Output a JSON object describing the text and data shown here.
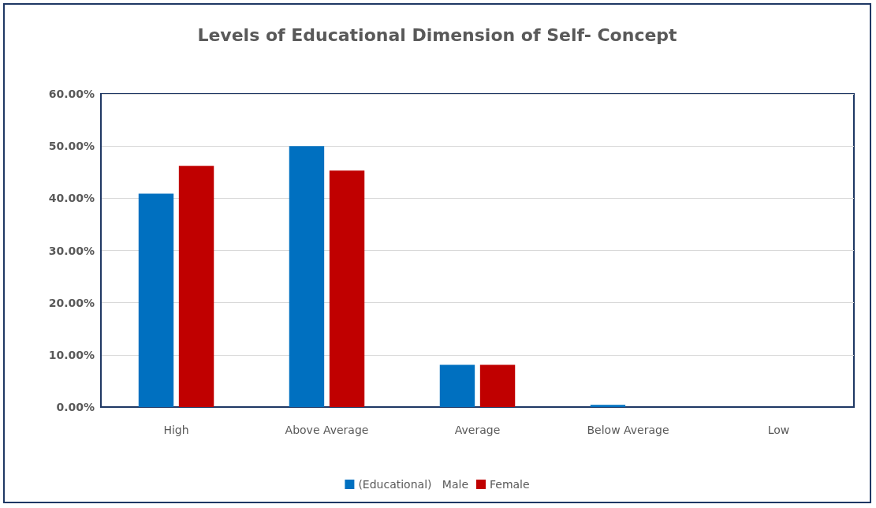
{
  "chart_data": {
    "type": "bar",
    "title": "Levels of Educational Dimension of Self- Concept",
    "categories": [
      "High",
      "Above Average",
      "Average",
      "Below Average",
      "Low"
    ],
    "series": [
      {
        "name": "(Educational)   Male",
        "color": "#0070c0",
        "values": [
          40.9,
          50.0,
          8.1,
          0.4,
          0
        ]
      },
      {
        "name": "Female",
        "color": "#c00000",
        "values": [
          46.2,
          45.3,
          8.1,
          0,
          0
        ]
      }
    ],
    "ylim": [
      0,
      60
    ],
    "yticks": [
      {
        "value": 0,
        "label": "0.00%"
      },
      {
        "value": 10,
        "label": "10.00%"
      },
      {
        "value": 20,
        "label": "20.00%"
      },
      {
        "value": 30,
        "label": "30.00%"
      },
      {
        "value": 40,
        "label": "40.00%"
      },
      {
        "value": 50,
        "label": "50.00%"
      },
      {
        "value": 60,
        "label": "60.00%"
      }
    ],
    "grid": "y",
    "legend": "bottom"
  }
}
